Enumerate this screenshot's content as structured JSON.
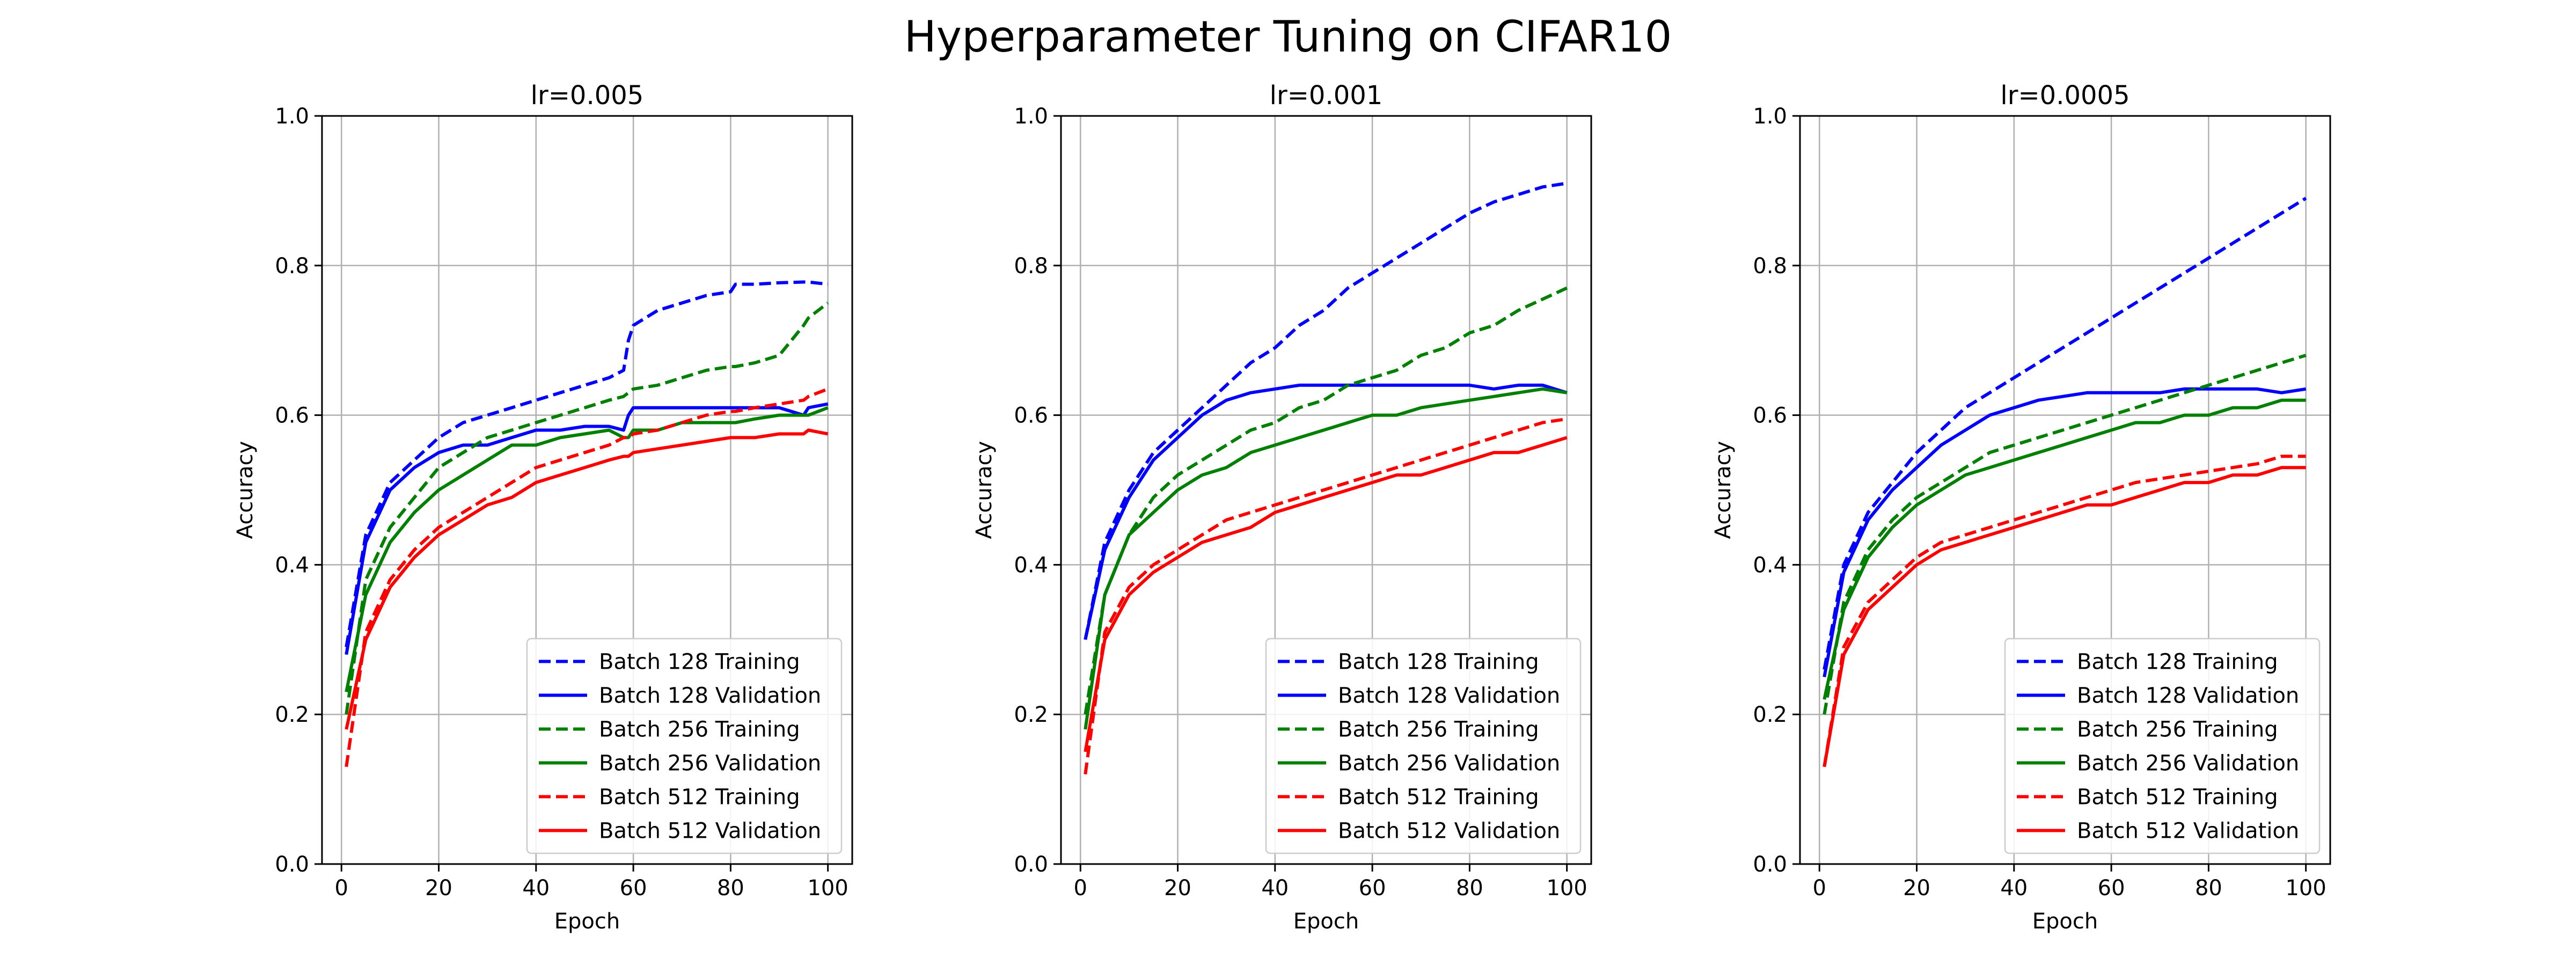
{
  "figure_title": "Hyperparameter Tuning on CIFAR10",
  "colors": {
    "batch_128": "#0000ff",
    "batch_256": "#008000",
    "batch_512": "#ff0000"
  },
  "chart_data": [
    {
      "type": "line",
      "title": "lr=0.005",
      "xlabel": "Epoch",
      "ylabel": "Accuracy",
      "xlim": [
        -4,
        105
      ],
      "ylim": [
        0,
        1.0
      ],
      "xticks": [
        0,
        20,
        40,
        60,
        80,
        100
      ],
      "yticks": [
        0.0,
        0.2,
        0.4,
        0.6,
        0.8,
        1.0
      ],
      "grid": true,
      "legend_position": "lower right",
      "x": [
        1,
        5,
        10,
        15,
        20,
        25,
        30,
        35,
        40,
        45,
        50,
        55,
        58,
        59,
        60,
        65,
        70,
        75,
        80,
        81,
        85,
        90,
        95,
        96,
        100
      ],
      "series": [
        {
          "name": "Batch 128 Training",
          "color": "#0000ff",
          "style": "dashed",
          "values": [
            0.29,
            0.44,
            0.51,
            0.54,
            0.57,
            0.59,
            0.6,
            0.61,
            0.62,
            0.63,
            0.64,
            0.65,
            0.66,
            0.7,
            0.72,
            0.74,
            0.75,
            0.76,
            0.765,
            0.775,
            0.775,
            0.777,
            0.778,
            0.778,
            0.775
          ]
        },
        {
          "name": "Batch 128 Validation",
          "color": "#0000ff",
          "style": "solid",
          "values": [
            0.28,
            0.43,
            0.5,
            0.53,
            0.55,
            0.56,
            0.56,
            0.57,
            0.58,
            0.58,
            0.585,
            0.585,
            0.58,
            0.6,
            0.61,
            0.61,
            0.61,
            0.61,
            0.61,
            0.61,
            0.61,
            0.61,
            0.6,
            0.61,
            0.615
          ]
        },
        {
          "name": "Batch 256 Training",
          "color": "#008000",
          "style": "dashed",
          "values": [
            0.2,
            0.38,
            0.45,
            0.49,
            0.53,
            0.55,
            0.57,
            0.58,
            0.59,
            0.6,
            0.61,
            0.62,
            0.625,
            0.63,
            0.635,
            0.64,
            0.65,
            0.66,
            0.665,
            0.665,
            0.67,
            0.68,
            0.72,
            0.73,
            0.75
          ]
        },
        {
          "name": "Batch 256 Validation",
          "color": "#008000",
          "style": "solid",
          "values": [
            0.23,
            0.36,
            0.43,
            0.47,
            0.5,
            0.52,
            0.54,
            0.56,
            0.56,
            0.57,
            0.575,
            0.58,
            0.57,
            0.57,
            0.58,
            0.58,
            0.59,
            0.59,
            0.59,
            0.59,
            0.595,
            0.6,
            0.6,
            0.6,
            0.61
          ]
        },
        {
          "name": "Batch 512 Training",
          "color": "#ff0000",
          "style": "dashed",
          "values": [
            0.13,
            0.31,
            0.38,
            0.42,
            0.45,
            0.47,
            0.49,
            0.51,
            0.53,
            0.54,
            0.55,
            0.56,
            0.57,
            0.57,
            0.575,
            0.58,
            0.59,
            0.6,
            0.605,
            0.605,
            0.61,
            0.615,
            0.62,
            0.625,
            0.635
          ]
        },
        {
          "name": "Batch 512 Validation",
          "color": "#ff0000",
          "style": "solid",
          "values": [
            0.18,
            0.3,
            0.37,
            0.41,
            0.44,
            0.46,
            0.48,
            0.49,
            0.51,
            0.52,
            0.53,
            0.54,
            0.545,
            0.545,
            0.55,
            0.555,
            0.56,
            0.565,
            0.57,
            0.57,
            0.57,
            0.575,
            0.575,
            0.58,
            0.575
          ]
        }
      ]
    },
    {
      "type": "line",
      "title": "lr=0.001",
      "xlabel": "Epoch",
      "ylabel": "Accuracy",
      "xlim": [
        -4,
        105
      ],
      "ylim": [
        0,
        1.0
      ],
      "xticks": [
        0,
        20,
        40,
        60,
        80,
        100
      ],
      "yticks": [
        0.0,
        0.2,
        0.4,
        0.6,
        0.8,
        1.0
      ],
      "grid": true,
      "legend_position": "lower right",
      "x": [
        1,
        5,
        10,
        15,
        20,
        25,
        30,
        35,
        40,
        45,
        50,
        55,
        60,
        65,
        70,
        75,
        80,
        85,
        90,
        95,
        100
      ],
      "series": [
        {
          "name": "Batch 128 Training",
          "color": "#0000ff",
          "style": "dashed",
          "values": [
            0.3,
            0.43,
            0.5,
            0.55,
            0.58,
            0.61,
            0.64,
            0.67,
            0.69,
            0.72,
            0.74,
            0.77,
            0.79,
            0.81,
            0.83,
            0.85,
            0.87,
            0.885,
            0.895,
            0.905,
            0.91
          ]
        },
        {
          "name": "Batch 128 Validation",
          "color": "#0000ff",
          "style": "solid",
          "values": [
            0.3,
            0.42,
            0.49,
            0.54,
            0.57,
            0.6,
            0.62,
            0.63,
            0.635,
            0.64,
            0.64,
            0.64,
            0.64,
            0.64,
            0.64,
            0.64,
            0.64,
            0.635,
            0.64,
            0.64,
            0.63
          ]
        },
        {
          "name": "Batch 256 Training",
          "color": "#008000",
          "style": "dashed",
          "values": [
            0.2,
            0.36,
            0.44,
            0.49,
            0.52,
            0.54,
            0.56,
            0.58,
            0.59,
            0.61,
            0.62,
            0.64,
            0.65,
            0.66,
            0.68,
            0.69,
            0.71,
            0.72,
            0.74,
            0.755,
            0.77
          ]
        },
        {
          "name": "Batch 256 Validation",
          "color": "#008000",
          "style": "solid",
          "values": [
            0.18,
            0.36,
            0.44,
            0.47,
            0.5,
            0.52,
            0.53,
            0.55,
            0.56,
            0.57,
            0.58,
            0.59,
            0.6,
            0.6,
            0.61,
            0.615,
            0.62,
            0.625,
            0.63,
            0.635,
            0.63
          ]
        },
        {
          "name": "Batch 512 Training",
          "color": "#ff0000",
          "style": "dashed",
          "values": [
            0.12,
            0.31,
            0.37,
            0.4,
            0.42,
            0.44,
            0.46,
            0.47,
            0.48,
            0.49,
            0.5,
            0.51,
            0.52,
            0.53,
            0.54,
            0.55,
            0.56,
            0.57,
            0.58,
            0.59,
            0.595
          ]
        },
        {
          "name": "Batch 512 Validation",
          "color": "#ff0000",
          "style": "solid",
          "values": [
            0.15,
            0.3,
            0.36,
            0.39,
            0.41,
            0.43,
            0.44,
            0.45,
            0.47,
            0.48,
            0.49,
            0.5,
            0.51,
            0.52,
            0.52,
            0.53,
            0.54,
            0.55,
            0.55,
            0.56,
            0.57
          ]
        }
      ]
    },
    {
      "type": "line",
      "title": "lr=0.0005",
      "xlabel": "Epoch",
      "ylabel": "Accuracy",
      "xlim": [
        -4,
        105
      ],
      "ylim": [
        0,
        1.0
      ],
      "xticks": [
        0,
        20,
        40,
        60,
        80,
        100
      ],
      "yticks": [
        0.0,
        0.2,
        0.4,
        0.6,
        0.8,
        1.0
      ],
      "grid": true,
      "legend_position": "lower right",
      "x": [
        1,
        5,
        10,
        15,
        20,
        25,
        30,
        35,
        40,
        45,
        50,
        55,
        60,
        65,
        70,
        75,
        80,
        85,
        90,
        95,
        100
      ],
      "series": [
        {
          "name": "Batch 128 Training",
          "color": "#0000ff",
          "style": "dashed",
          "values": [
            0.26,
            0.4,
            0.47,
            0.51,
            0.55,
            0.58,
            0.61,
            0.63,
            0.65,
            0.67,
            0.69,
            0.71,
            0.73,
            0.75,
            0.77,
            0.79,
            0.81,
            0.83,
            0.85,
            0.87,
            0.89
          ]
        },
        {
          "name": "Batch 128 Validation",
          "color": "#0000ff",
          "style": "solid",
          "values": [
            0.25,
            0.39,
            0.46,
            0.5,
            0.53,
            0.56,
            0.58,
            0.6,
            0.61,
            0.62,
            0.625,
            0.63,
            0.63,
            0.63,
            0.63,
            0.635,
            0.635,
            0.635,
            0.635,
            0.63,
            0.635
          ]
        },
        {
          "name": "Batch 256 Training",
          "color": "#008000",
          "style": "dashed",
          "values": [
            0.2,
            0.35,
            0.42,
            0.46,
            0.49,
            0.51,
            0.53,
            0.55,
            0.56,
            0.57,
            0.58,
            0.59,
            0.6,
            0.61,
            0.62,
            0.63,
            0.64,
            0.65,
            0.66,
            0.67,
            0.68
          ]
        },
        {
          "name": "Batch 256 Validation",
          "color": "#008000",
          "style": "solid",
          "values": [
            0.22,
            0.34,
            0.41,
            0.45,
            0.48,
            0.5,
            0.52,
            0.53,
            0.54,
            0.55,
            0.56,
            0.57,
            0.58,
            0.59,
            0.59,
            0.6,
            0.6,
            0.61,
            0.61,
            0.62,
            0.62
          ]
        },
        {
          "name": "Batch 512 Training",
          "color": "#ff0000",
          "style": "dashed",
          "values": [
            0.13,
            0.29,
            0.35,
            0.38,
            0.41,
            0.43,
            0.44,
            0.45,
            0.46,
            0.47,
            0.48,
            0.49,
            0.5,
            0.51,
            0.515,
            0.52,
            0.525,
            0.53,
            0.535,
            0.545,
            0.545
          ]
        },
        {
          "name": "Batch 512 Validation",
          "color": "#ff0000",
          "style": "solid",
          "values": [
            0.13,
            0.28,
            0.34,
            0.37,
            0.4,
            0.42,
            0.43,
            0.44,
            0.45,
            0.46,
            0.47,
            0.48,
            0.48,
            0.49,
            0.5,
            0.51,
            0.51,
            0.52,
            0.52,
            0.53,
            0.53
          ]
        }
      ]
    }
  ]
}
